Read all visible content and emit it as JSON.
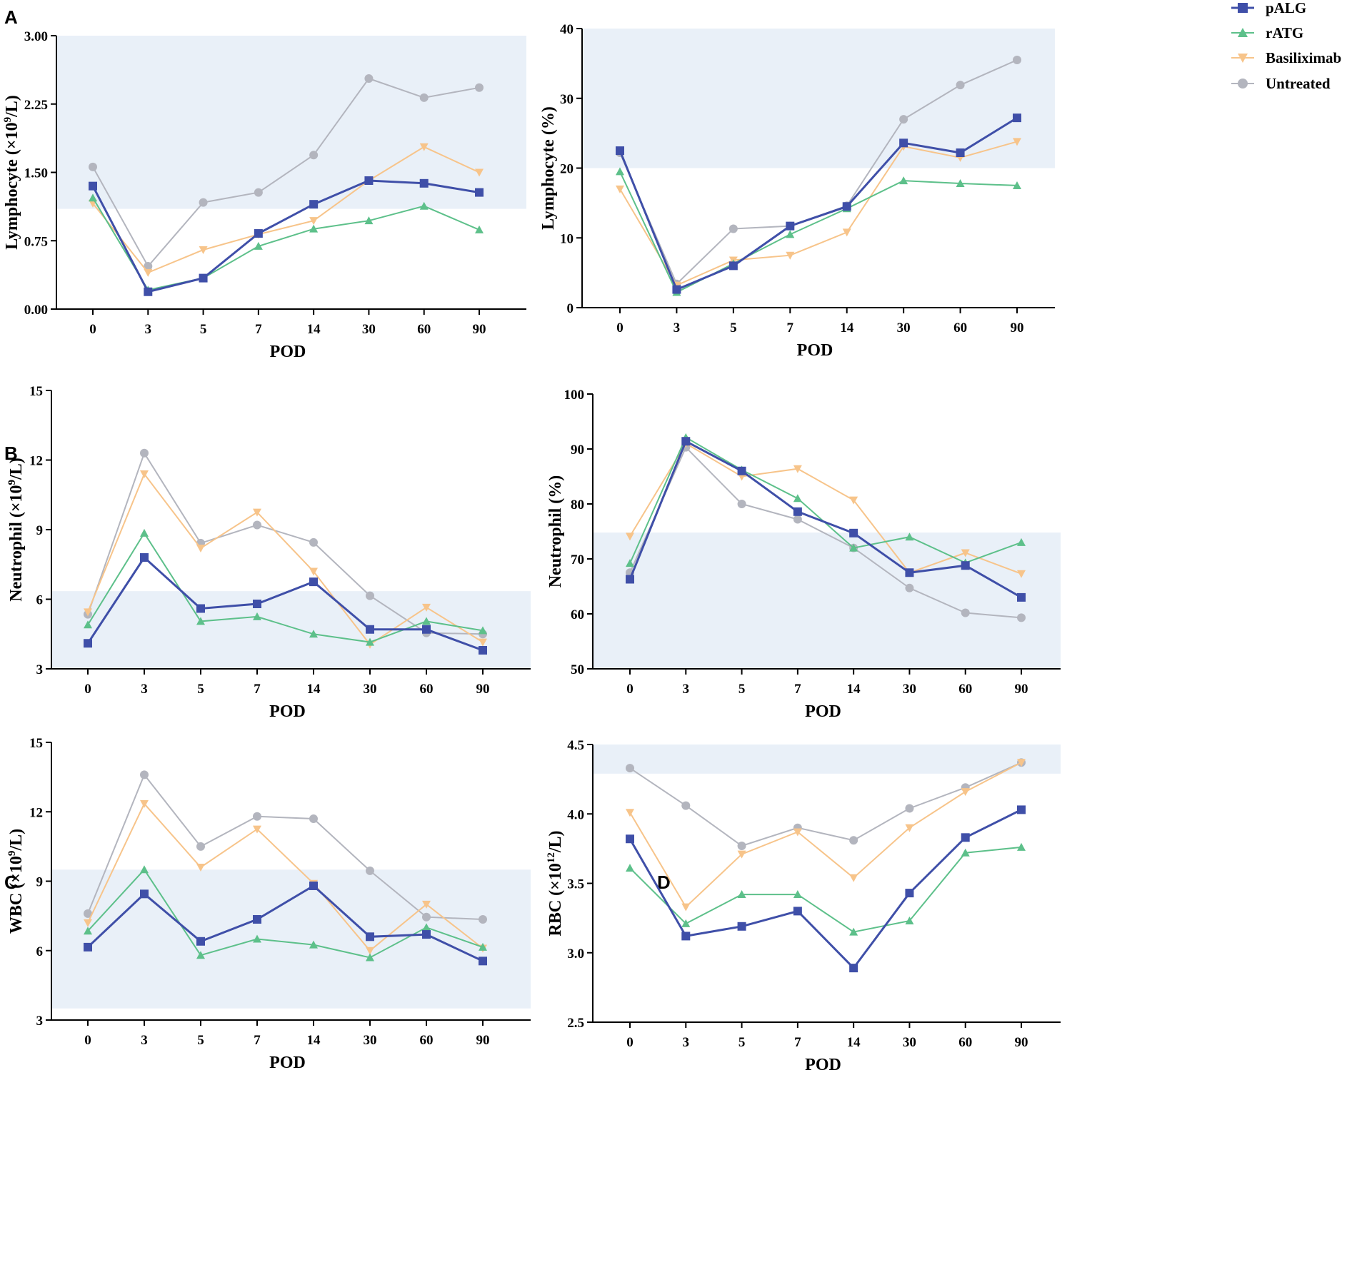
{
  "panel_labels": [
    "A",
    "B",
    "C",
    "D"
  ],
  "legend": [
    {
      "name": "pALG",
      "marker": "square",
      "color": "#3F4FA8"
    },
    {
      "name": "rATG",
      "marker": "triangle-up",
      "color": "#5DC08A"
    },
    {
      "name": "Basiliximab",
      "marker": "triangle-down",
      "color": "#F7C48A"
    },
    {
      "name": "Untreated",
      "marker": "circle",
      "color": "#B3B5BE"
    }
  ],
  "colors": {
    "band": "#E9F0F8",
    "axis": "#000000"
  },
  "chart_data": [
    {
      "id": "A-left",
      "type": "line",
      "panel_label": "A",
      "categories": [
        "0",
        "3",
        "5",
        "7",
        "14",
        "30",
        "60",
        "90"
      ],
      "xlabel": "POD",
      "ylabel": "Lymphocyte (×10⁹/L)",
      "ylabel_parts": [
        "Lymphocyte (×10",
        "9",
        "/L)"
      ],
      "ylim": [
        0,
        3.0
      ],
      "yticks": [
        "0.00",
        "0.75",
        "1.50",
        "2.25",
        "3.00"
      ],
      "reference_band": [
        1.1,
        3.0
      ],
      "series": [
        {
          "name": "Untreated",
          "values": [
            1.56,
            0.47,
            1.17,
            1.28,
            1.69,
            2.53,
            2.32,
            2.43
          ]
        },
        {
          "name": "Basiliximab",
          "values": [
            1.16,
            0.4,
            0.65,
            0.82,
            0.97,
            1.41,
            1.78,
            1.5
          ]
        },
        {
          "name": "rATG",
          "values": [
            1.22,
            0.21,
            0.34,
            0.69,
            0.88,
            0.97,
            1.13,
            0.87
          ]
        },
        {
          "name": "pALG",
          "values": [
            1.35,
            0.19,
            0.34,
            0.83,
            1.15,
            1.41,
            1.38,
            1.28
          ]
        }
      ]
    },
    {
      "id": "A-right",
      "type": "line",
      "panel_label": "",
      "categories": [
        "0",
        "3",
        "5",
        "7",
        "14",
        "30",
        "60",
        "90"
      ],
      "xlabel": "POD",
      "ylabel": "Lymphocyte (%)",
      "ylabel_parts": [
        "Lymphocyte (%)",
        "",
        ""
      ],
      "ylim": [
        0,
        40
      ],
      "yticks": [
        "0",
        "10",
        "20",
        "30",
        "40"
      ],
      "reference_band": [
        20,
        40
      ],
      "series": [
        {
          "name": "Untreated",
          "values": [
            22.2,
            3.4,
            11.3,
            11.7,
            14.6,
            27.0,
            31.9,
            35.5
          ]
        },
        {
          "name": "Basiliximab",
          "values": [
            17.0,
            3.2,
            6.8,
            7.5,
            10.8,
            23.1,
            21.5,
            23.8
          ]
        },
        {
          "name": "rATG",
          "values": [
            19.5,
            2.2,
            6.3,
            10.5,
            14.2,
            18.2,
            17.8,
            17.5
          ]
        },
        {
          "name": "pALG",
          "values": [
            22.5,
            2.6,
            6.0,
            11.7,
            14.5,
            23.6,
            22.2,
            27.2
          ]
        }
      ]
    },
    {
      "id": "B-left",
      "type": "line",
      "panel_label": "B",
      "categories": [
        "0",
        "3",
        "5",
        "7",
        "14",
        "30",
        "60",
        "90"
      ],
      "xlabel": "POD",
      "ylabel": "Neutrophil (×10⁹/L)",
      "ylabel_parts": [
        "Neutrophil (×10",
        "9",
        "/L)"
      ],
      "ylim": [
        3,
        15
      ],
      "yticks": [
        "3",
        "6",
        "9",
        "12",
        "15"
      ],
      "reference_band": [
        3,
        6.35
      ],
      "series": [
        {
          "name": "Untreated",
          "values": [
            5.35,
            12.3,
            8.42,
            9.2,
            8.45,
            6.15,
            4.55,
            4.5
          ]
        },
        {
          "name": "Basiliximab",
          "values": [
            5.45,
            11.4,
            8.2,
            9.75,
            7.2,
            4.05,
            5.65,
            4.15
          ]
        },
        {
          "name": "rATG",
          "values": [
            4.9,
            8.85,
            5.05,
            5.25,
            4.5,
            4.15,
            5.05,
            4.65
          ]
        },
        {
          "name": "pALG",
          "values": [
            4.1,
            7.8,
            5.6,
            5.8,
            6.75,
            4.7,
            4.7,
            3.8
          ]
        }
      ]
    },
    {
      "id": "B-right",
      "type": "line",
      "panel_label": "",
      "categories": [
        "0",
        "3",
        "5",
        "7",
        "14",
        "30",
        "60",
        "90"
      ],
      "xlabel": "POD",
      "ylabel": "Neutrophil (%)",
      "ylabel_parts": [
        "Neutrophil (%)",
        "",
        ""
      ],
      "ylim": [
        50,
        100
      ],
      "yticks": [
        "50",
        "60",
        "70",
        "80",
        "90",
        "100"
      ],
      "reference_band": [
        50,
        74.8
      ],
      "series": [
        {
          "name": "Untreated",
          "values": [
            67.5,
            90.3,
            80.0,
            77.2,
            72.0,
            64.7,
            60.2,
            59.3
          ]
        },
        {
          "name": "Basiliximab",
          "values": [
            74.1,
            91.0,
            85.0,
            86.4,
            80.7,
            67.5,
            71.1,
            67.3
          ]
        },
        {
          "name": "rATG",
          "values": [
            69.2,
            92.1,
            86.2,
            81.0,
            72.0,
            74.0,
            69.3,
            73.0
          ]
        },
        {
          "name": "pALG",
          "values": [
            66.3,
            91.4,
            86.0,
            78.6,
            74.7,
            67.5,
            68.8,
            63.0
          ]
        }
      ]
    },
    {
      "id": "C",
      "type": "line",
      "panel_label": "C",
      "categories": [
        "0",
        "3",
        "5",
        "7",
        "14",
        "30",
        "60",
        "90"
      ],
      "xlabel": "POD",
      "ylabel": "WBC (×10⁹/L)",
      "ylabel_parts": [
        "WBC (×10",
        "9",
        "/L)"
      ],
      "ylim": [
        3,
        15
      ],
      "yticks": [
        "3",
        "6",
        "9",
        "12",
        "15"
      ],
      "reference_band": [
        3.5,
        9.5
      ],
      "series": [
        {
          "name": "Untreated",
          "values": [
            7.6,
            13.6,
            10.5,
            11.8,
            11.7,
            9.45,
            7.45,
            7.35
          ]
        },
        {
          "name": "Basiliximab",
          "values": [
            7.2,
            12.35,
            9.6,
            11.25,
            8.9,
            6.0,
            8.0,
            6.1
          ]
        },
        {
          "name": "rATG",
          "values": [
            6.85,
            9.5,
            5.8,
            6.5,
            6.25,
            5.7,
            7.0,
            6.15
          ]
        },
        {
          "name": "pALG",
          "values": [
            6.15,
            8.45,
            6.4,
            7.35,
            8.8,
            6.6,
            6.7,
            5.55
          ]
        }
      ]
    },
    {
      "id": "D",
      "type": "line",
      "panel_label": "D",
      "categories": [
        "0",
        "3",
        "5",
        "7",
        "14",
        "30",
        "60",
        "90"
      ],
      "xlabel": "POD",
      "ylabel": "RBC (×10¹²/L)",
      "ylabel_parts": [
        "RBC (×10",
        "12",
        "/L)"
      ],
      "ylim": [
        2.5,
        4.5
      ],
      "yticks": [
        "2.5",
        "3.0",
        "3.5",
        "4.0",
        "4.5"
      ],
      "reference_band": [
        4.29,
        4.5
      ],
      "series": [
        {
          "name": "Untreated",
          "values": [
            4.33,
            4.06,
            3.77,
            3.9,
            3.81,
            4.04,
            4.19,
            4.37
          ]
        },
        {
          "name": "Basiliximab",
          "values": [
            4.01,
            3.33,
            3.71,
            3.87,
            3.54,
            3.9,
            4.16,
            4.37
          ]
        },
        {
          "name": "rATG",
          "values": [
            3.61,
            3.21,
            3.42,
            3.42,
            3.15,
            3.23,
            3.72,
            3.76
          ]
        },
        {
          "name": "pALG",
          "values": [
            3.82,
            3.12,
            3.19,
            3.3,
            2.89,
            3.43,
            3.83,
            4.03
          ]
        }
      ]
    }
  ]
}
